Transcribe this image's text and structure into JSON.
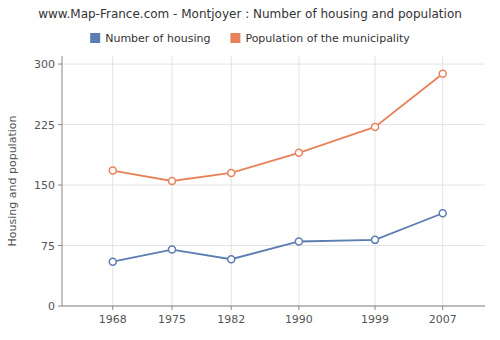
{
  "chart_data": {
    "type": "line",
    "title": "www.Map-France.com - Montjoyer : Number of housing and population",
    "ylabel": "Housing and population",
    "x": [
      1968,
      1975,
      1982,
      1990,
      1999,
      2007
    ],
    "series": [
      {
        "name": "Number of housing",
        "color": "#5b7db1",
        "values": [
          55,
          70,
          58,
          80,
          82,
          115
        ]
      },
      {
        "name": "Population of the municipality",
        "color": "#e8825a",
        "values": [
          168,
          155,
          165,
          190,
          222,
          288
        ]
      }
    ],
    "xlim": [
      1962,
      2012
    ],
    "xticks": [
      1968,
      1975,
      1982,
      1990,
      1999,
      2007
    ],
    "ylim": [
      0,
      310
    ],
    "yticks": [
      0,
      75,
      150,
      225,
      300
    ],
    "grid": true,
    "legend": "top",
    "marker": "circle"
  }
}
